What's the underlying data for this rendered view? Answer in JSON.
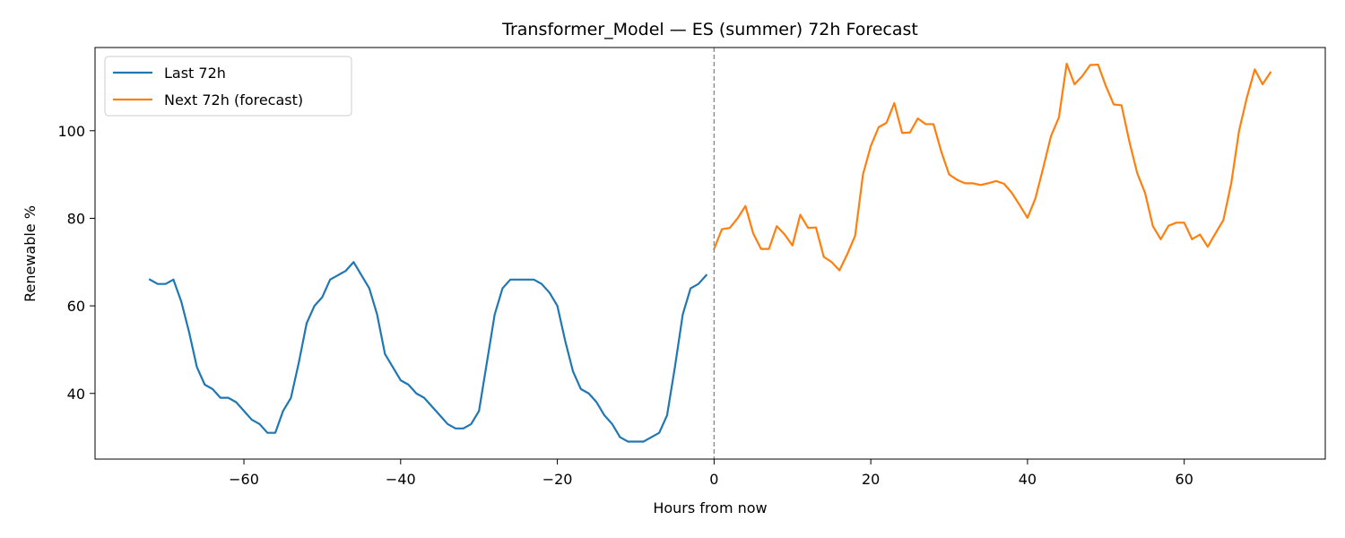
{
  "chart_data": {
    "type": "line",
    "title": "Transformer_Model — ES (summer) 72h Forecast",
    "xlabel": "Hours from now",
    "ylabel": "Renewable %",
    "xlim": [
      -79,
      78
    ],
    "ylim": [
      25,
      119
    ],
    "xticks": [
      -60,
      -40,
      -20,
      0,
      20,
      40,
      60
    ],
    "xtick_labels": [
      "−60",
      "−40",
      "−20",
      "0",
      "20",
      "40",
      "60"
    ],
    "yticks": [
      40,
      60,
      80,
      100
    ],
    "ytick_labels": [
      "40",
      "60",
      "80",
      "100"
    ],
    "grid": false,
    "legend_position": "top-left",
    "reference_line": {
      "x": 0,
      "style": "dashed",
      "color": "#888888"
    },
    "series": [
      {
        "name": "Last 72h",
        "color": "#1f77b4",
        "x": [
          -72,
          -71,
          -70,
          -69,
          -68,
          -67,
          -66,
          -65,
          -64,
          -63,
          -62,
          -61,
          -60,
          -59,
          -58,
          -57,
          -56,
          -55,
          -54,
          -53,
          -52,
          -51,
          -50,
          -49,
          -48,
          -47,
          -46,
          -45,
          -44,
          -43,
          -42,
          -41,
          -40,
          -39,
          -38,
          -37,
          -36,
          -35,
          -34,
          -33,
          -32,
          -31,
          -30,
          -29,
          -28,
          -27,
          -26,
          -25,
          -24,
          -23,
          -22,
          -21,
          -20,
          -19,
          -18,
          -17,
          -16,
          -15,
          -14,
          -13,
          -12,
          -11,
          -10,
          -9,
          -8,
          -7,
          -6,
          -5,
          -4,
          -3,
          -2,
          -1
        ],
        "y": [
          66,
          65,
          65,
          66,
          61,
          54,
          46,
          42,
          41,
          39,
          39,
          38,
          36,
          34,
          33,
          31,
          31,
          36,
          39,
          47,
          56,
          60,
          62,
          66,
          67,
          68,
          70,
          67,
          64,
          58,
          49,
          46,
          43,
          42,
          40,
          39,
          37,
          35,
          33,
          32,
          32,
          33,
          36,
          47,
          58,
          64,
          66,
          66,
          66,
          66,
          65,
          63,
          60,
          52,
          45,
          41,
          40,
          38,
          35,
          33,
          30,
          29,
          29,
          29,
          30,
          31,
          35,
          46,
          58,
          64,
          65,
          67
        ]
      },
      {
        "name": "Next 72h (forecast)",
        "color": "#ff7f0e",
        "x": [
          0,
          1,
          2,
          3,
          4,
          5,
          6,
          7,
          8,
          9,
          10,
          11,
          12,
          13,
          14,
          15,
          16,
          17,
          18,
          19,
          20,
          21,
          22,
          23,
          24,
          25,
          26,
          27,
          28,
          29,
          30,
          31,
          32,
          33,
          34,
          35,
          36,
          37,
          38,
          39,
          40,
          41,
          42,
          43,
          44,
          45,
          46,
          47,
          48,
          49,
          50,
          51,
          52,
          53,
          54,
          55,
          56,
          57,
          58,
          59,
          60,
          61,
          62,
          63,
          64,
          65,
          66,
          67,
          68,
          69,
          70,
          71
        ],
        "y": [
          73,
          77.5,
          77.8,
          80,
          82.8,
          76.5,
          73,
          73,
          78.2,
          76.3,
          73.8,
          80.8,
          77.8,
          77.9,
          71.2,
          70,
          68.1,
          71.8,
          76,
          90,
          96.5,
          100.8,
          101.8,
          106.3,
          99.5,
          99.6,
          102.8,
          101.5,
          101.5,
          95.2,
          90,
          88.8,
          88,
          88,
          87.6,
          88,
          88.5,
          87.9,
          85.8,
          83,
          80.1,
          84.5,
          91.5,
          98.8,
          103,
          115.3,
          110.6,
          112.5,
          115,
          115.1,
          110.2,
          106,
          105.8,
          97.5,
          90.3,
          85.8,
          78.2,
          75.2,
          78.3,
          79,
          79,
          75.2,
          76.3,
          73.5,
          76.6,
          79.6,
          88,
          100,
          107.6,
          114,
          110.6,
          113.3
        ]
      }
    ]
  }
}
